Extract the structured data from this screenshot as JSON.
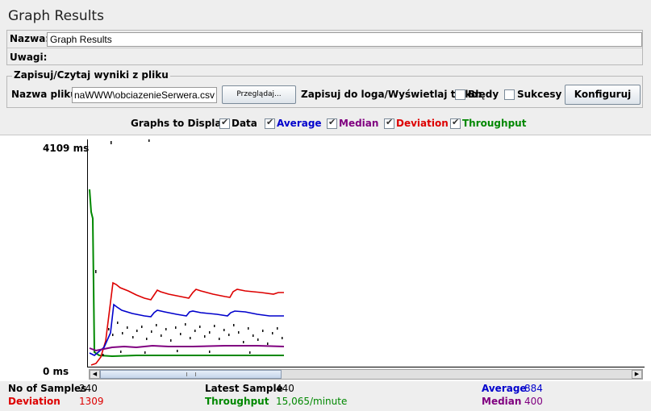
{
  "title": "Graph Results",
  "name_row": {
    "label": "Nazwa:",
    "value": "Graph Results"
  },
  "comments_row": {
    "label": "Uwagi:"
  },
  "file_panel": {
    "legend": "Zapisuj/Czytaj wyniki z pliku",
    "filename_label": "Nazwa pliku",
    "filename_value": "naWWW\\obciazenieSerwera.csv",
    "browse_label": "Przeglądaj...",
    "log_label": "Zapisuj do loga/Wyświetlaj tylko:",
    "errors_label": "Błędy",
    "errors_checked": false,
    "success_label": "Sukcesy",
    "success_checked": false,
    "configure_label": "Konfiguruj"
  },
  "graphs_to_display": {
    "label": "Graphs to Display",
    "options": [
      {
        "label": "Data",
        "checked": true,
        "color": "#000000"
      },
      {
        "label": "Average",
        "checked": true,
        "color": "#0000cc"
      },
      {
        "label": "Median",
        "checked": true,
        "color": "#800080"
      },
      {
        "label": "Deviation",
        "checked": true,
        "color": "#dd0000"
      },
      {
        "label": "Throughput",
        "checked": true,
        "color": "#008800"
      }
    ]
  },
  "graph": {
    "y_max_label": "4109 ms",
    "y_min_label": "0 ms"
  },
  "stats": {
    "samples_label": "No of Samples",
    "samples_value": "240",
    "latest_label": "Latest Sample",
    "latest_value": "440",
    "average_label": "Average",
    "average_value": "884",
    "deviation_label": "Deviation",
    "deviation_value": "1309",
    "throughput_label": "Throughput",
    "throughput_value": "15,065/minute",
    "median_label": "Median",
    "median_value": "400"
  },
  "colors": {
    "data": "#000000",
    "average": "#0000cc",
    "median": "#800080",
    "deviation": "#dd0000",
    "throughput": "#008800"
  }
}
